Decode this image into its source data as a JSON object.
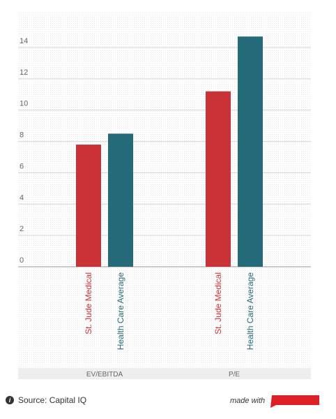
{
  "chart_data": {
    "type": "bar",
    "categories": [
      "EV/EBITDA",
      "P/E"
    ],
    "series": [
      {
        "name": "St. Jude Medical",
        "color": "#c93337",
        "values": [
          7.8,
          11.2
        ]
      },
      {
        "name": "Health Care Average",
        "color": "#256a78",
        "values": [
          8.5,
          14.7
        ]
      }
    ],
    "y_ticks": [
      "0",
      "2",
      "4",
      "6",
      "8",
      "10",
      "12",
      "14"
    ],
    "ylim": [
      0,
      16
    ],
    "grid": true,
    "xlabel": "",
    "ylabel": "",
    "title": ""
  },
  "footer": {
    "info_glyph": "i",
    "source_text": "Source: Capital IQ",
    "made_with_text": "made with",
    "logo_color": "#dd1f26"
  }
}
